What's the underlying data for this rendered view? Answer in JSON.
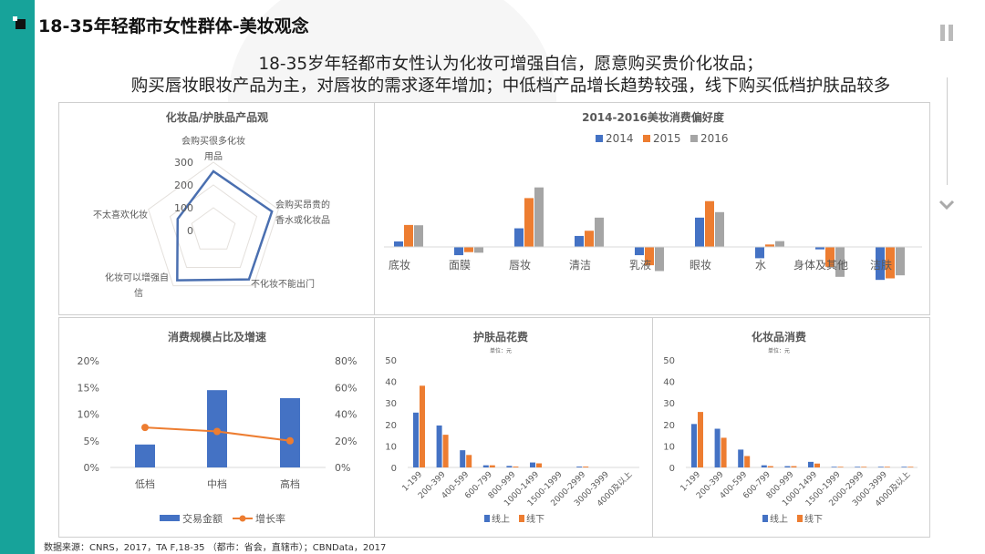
{
  "header": {
    "title": "18-35年轻都市女性群体-美妆观念",
    "subtitle_line1": "18-35岁年轻都市女性认为化妆可增强自信，愿意购买贵价化妆品；",
    "subtitle_line2": "购买唇妆眼妆产品为主，对唇妆的需求逐年增加；中低档产品增长趋势较强，线下购买低档护肤品较多"
  },
  "source": "数据来源：CNRS，2017，TA F,18-35 （都市：省会，直辖市）；CBNData，2017",
  "nav": {
    "pause_icon": "pause-icon",
    "next_icon": "chevron-down-icon"
  },
  "colors": {
    "teal": "#17a39a",
    "blue": "#4472c4",
    "orange": "#ed7d31",
    "gray": "#a5a5a5"
  },
  "chart_data": [
    {
      "type": "radar",
      "title": "化妆品/护肤品产品观",
      "axes": [
        "会购买很多化妆用品",
        "会购买昂贵的香水或化妆品",
        "不化妆不能出门",
        "化妆可以增强自信",
        "不太喜欢化妆"
      ],
      "values": [
        260,
        270,
        265,
        270,
        165
      ],
      "ticks": [
        "0",
        "100",
        "200",
        "300"
      ],
      "rmax": 300
    },
    {
      "type": "bar",
      "title": "2014-2016美妆消费偏好度",
      "categories": [
        "底妆",
        "面膜",
        "唇妆",
        "清洁",
        "乳液",
        "眼妆",
        "水",
        "身体及其他",
        "洁肤"
      ],
      "series": [
        {
          "name": "2014",
          "color": "#4472c4",
          "values": [
            1.8,
            -2.7,
            6.1,
            3.6,
            -2.7,
            9.6,
            -3.7,
            -0.8,
            -10.8
          ]
        },
        {
          "name": "2015",
          "color": "#ed7d31",
          "values": [
            7.2,
            -1.7,
            16.0,
            5.3,
            -6.0,
            15.0,
            0.8,
            -6.5,
            -10.3
          ]
        },
        {
          "name": "2016",
          "color": "#a5a5a5",
          "values": [
            7.1,
            -1.9,
            19.5,
            9.6,
            -7.9,
            11.4,
            1.9,
            -9.8,
            -9.3
          ]
        }
      ],
      "legend": "top"
    },
    {
      "type": "bar+line",
      "title": "消费规模占比及增速",
      "categories": [
        "低档",
        "中档",
        "高档"
      ],
      "series": [
        {
          "name": "交易金额",
          "kind": "bar",
          "axis": "left",
          "values": [
            4.3,
            14.5,
            13.0
          ]
        },
        {
          "name": "增长率",
          "kind": "line",
          "axis": "right",
          "values": [
            30,
            27,
            20
          ]
        }
      ],
      "yticks_left": [
        "0%",
        "5%",
        "10%",
        "15%",
        "20%"
      ],
      "yticks_right": [
        "0%",
        "20%",
        "40%",
        "60%",
        "80%"
      ],
      "ylim_left": [
        0,
        20
      ],
      "ylim_right": [
        0,
        80
      ],
      "legend": "bottom"
    },
    {
      "type": "bar",
      "title": "护肤品花费",
      "unit": "单位：元",
      "categories": [
        "1-199",
        "200-399",
        "400-599",
        "600-799",
        "800-999",
        "1000-1499",
        "1500-1999",
        "2000-2999",
        "3000-3999",
        "4000及以上"
      ],
      "series": [
        {
          "name": "线上",
          "values": [
            25.5,
            19.5,
            8,
            1,
            0.7,
            2.3,
            0,
            0.4,
            0,
            0
          ]
        },
        {
          "name": "线下",
          "values": [
            38,
            15.2,
            5.8,
            1,
            0.4,
            1.9,
            0,
            0.4,
            0,
            0
          ]
        }
      ],
      "yticks": [
        "0",
        "10",
        "20",
        "30",
        "40",
        "50"
      ],
      "ylim": [
        0,
        50
      ],
      "legend": "bottom"
    },
    {
      "type": "bar",
      "title": "化妆品消费",
      "unit": "单位：元",
      "categories": [
        "1-199",
        "200-399",
        "400-599",
        "600-799",
        "800-999",
        "1000-1499",
        "1500-1999",
        "2000-2999",
        "3000-3999",
        "4000及以上"
      ],
      "series": [
        {
          "name": "线上",
          "values": [
            20.2,
            18,
            8.3,
            1,
            0.6,
            2.6,
            0.3,
            0.3,
            0.3,
            0.3
          ]
        },
        {
          "name": "线下",
          "values": [
            25.8,
            13.8,
            5.3,
            0.6,
            0.6,
            1.8,
            0.3,
            0.3,
            0.3,
            0.3
          ]
        }
      ],
      "yticks": [
        "0",
        "10",
        "20",
        "30",
        "40",
        "50"
      ],
      "ylim": [
        0,
        50
      ],
      "legend": "bottom"
    }
  ]
}
